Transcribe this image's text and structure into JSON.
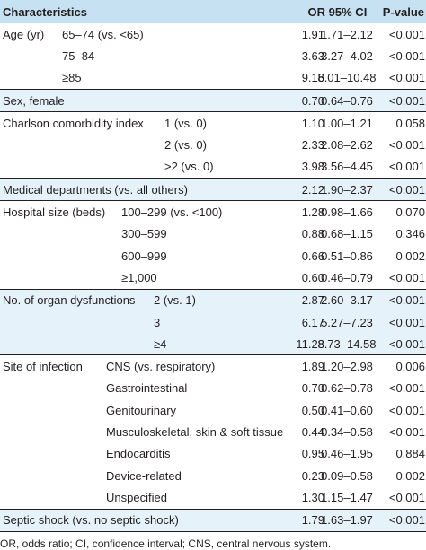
{
  "header": {
    "characteristics": "Characteristics",
    "or": "OR",
    "ci": "95% CI",
    "p": "P-value"
  },
  "rows": [
    {
      "label": "Age (yr)",
      "sub": "65–74 (vs. <65)",
      "or": "1.91",
      "ci": "1.71–2.12",
      "p": "<0.001"
    },
    {
      "label": "",
      "sub": "75–84",
      "or": "3.63",
      "ci": "3.27–4.02",
      "p": "<0.001"
    },
    {
      "label": "",
      "sub": "≥85",
      "or": "9.16",
      "ci": "8.01–10.48",
      "p": "<0.001"
    },
    {
      "label": "Sex, female",
      "sub": "",
      "or": "0.70",
      "ci": "0.64–0.76",
      "p": "<0.001"
    },
    {
      "label": "Charlson comorbidity index",
      "sub": "1 (vs. 0)",
      "or": "1.10",
      "ci": "1.00–1.21",
      "p": "0.058"
    },
    {
      "label": "",
      "sub": "2 (vs. 0)",
      "or": "2.33",
      "ci": "2.08–2.62",
      "p": "<0.001"
    },
    {
      "label": "",
      "sub": ">2 (vs. 0)",
      "or": "3.98",
      "ci": "3.56–4.45",
      "p": "<0.001"
    },
    {
      "label": "Medical departments (vs. all others)",
      "sub": "",
      "or": "2.12",
      "ci": "1.90–2.37",
      "p": "<0.001"
    },
    {
      "label": "Hospital size (beds)",
      "sub": "100–299 (vs. <100)",
      "or": "1.28",
      "ci": "0.98–1.66",
      "p": "0.070"
    },
    {
      "label": "",
      "sub": "300–599",
      "or": "0.88",
      "ci": "0.68–1.15",
      "p": "0.346"
    },
    {
      "label": "",
      "sub": "600–999",
      "or": "0.66",
      "ci": "0.51–0.86",
      "p": "0.002"
    },
    {
      "label": "",
      "sub": "≥1,000",
      "or": "0.60",
      "ci": "0.46–0.79",
      "p": "<0.001"
    },
    {
      "label": "No. of organ dysfunctions",
      "sub": "2 (vs. 1)",
      "or": "2.87",
      "ci": "2.60–3.17",
      "p": "<0.001"
    },
    {
      "label": "",
      "sub": "3",
      "or": "6.17",
      "ci": "5.27–7.23",
      "p": "<0.001"
    },
    {
      "label": "",
      "sub": "≥4",
      "or": "11.28",
      "ci": "8.73–14.58",
      "p": "<0.001"
    },
    {
      "label": "Site of infection",
      "sub": "CNS (vs. respiratory)",
      "or": "1.89",
      "ci": "1.20–2.98",
      "p": "0.006"
    },
    {
      "label": "",
      "sub": "Gastrointestinal",
      "or": "0.70",
      "ci": "0.62–0.78",
      "p": "<0.001"
    },
    {
      "label": "",
      "sub": "Genitourinary",
      "or": "0.50",
      "ci": "0.41–0.60",
      "p": "<0.001"
    },
    {
      "label": "",
      "sub": "Musculoskeletal, skin & soft tissue",
      "or": "0.44",
      "ci": "0.34–0.58",
      "p": "<0.001"
    },
    {
      "label": "",
      "sub": "Endocarditis",
      "or": "0.95",
      "ci": "0.46–1.95",
      "p": "0.884"
    },
    {
      "label": "",
      "sub": "Device-related",
      "or": "0.23",
      "ci": "0.09–0.58",
      "p": "0.002"
    },
    {
      "label": "",
      "sub": "Unspecified",
      "or": "1.30",
      "ci": "1.15–1.47",
      "p": "<0.001"
    },
    {
      "label": "Septic shock (vs. no septic shock)",
      "sub": "",
      "or": "1.79",
      "ci": "1.63–1.97",
      "p": "<0.001"
    }
  ],
  "footnote": "OR, odds ratio; CI, confidence interval; CNS, central nervous system.",
  "colors": {
    "header_bg": "#c6e2f2",
    "shade_bg": "#e5f2fa",
    "rule": "#231f20"
  }
}
